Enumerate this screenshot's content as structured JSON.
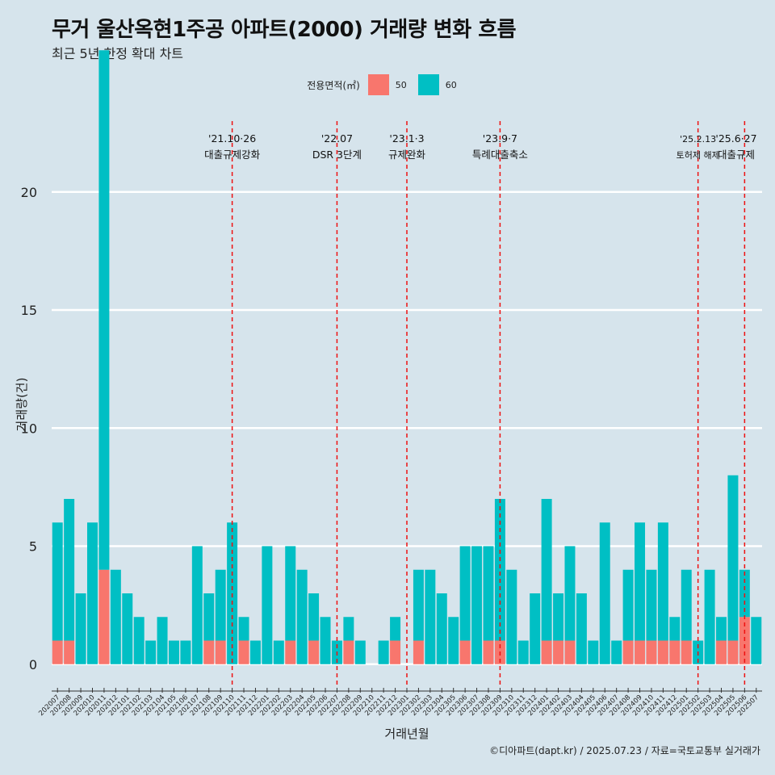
{
  "title": "무거 울산옥현1주공 아파트(2000) 거래량 변화 흐름",
  "subtitle": "최근 5년 한정 확대 차트",
  "caption": "©디아파트(dapt.kr) / 2025.07.23 / 자료=국토교통부 실거래가",
  "colors": {
    "s50": "#f8766d",
    "s60": "#00bfc4",
    "background": "#d6e4ec",
    "grid": "#ffffff",
    "vline": "#ee1111"
  },
  "chart_data": {
    "type": "bar",
    "title": "무거 울산옥현1주공 아파트(2000) 거래량 변화 흐름",
    "subtitle": "최근 5년 한정 확대 차트",
    "xlabel": "거래년월",
    "ylabel": "거래량(건)",
    "ylim": [
      -1,
      23
    ],
    "yticks": [
      0,
      5,
      10,
      15,
      20
    ],
    "grid": true,
    "legend": {
      "title": "전용면적(㎡)",
      "position": "top",
      "entries": [
        "50",
        "60"
      ]
    },
    "categories": [
      "202007",
      "202008",
      "202009",
      "202010",
      "202011",
      "202012",
      "202101",
      "202102",
      "202103",
      "202104",
      "202105",
      "202106",
      "202107",
      "202108",
      "202109",
      "202110",
      "202111",
      "202112",
      "202201",
      "202202",
      "202203",
      "202204",
      "202205",
      "202206",
      "202207",
      "202208",
      "202209",
      "202210",
      "202211",
      "202212",
      "202301",
      "202302",
      "202303",
      "202304",
      "202305",
      "202306",
      "202307",
      "202308",
      "202309",
      "202310",
      "202311",
      "202312",
      "202401",
      "202402",
      "202403",
      "202404",
      "202405",
      "202406",
      "202407",
      "202408",
      "202409",
      "202410",
      "202411",
      "202412",
      "202501",
      "202502",
      "202503",
      "202504",
      "202505",
      "202506",
      "202507"
    ],
    "series": [
      {
        "name": "50",
        "values": [
          1,
          1,
          0,
          0,
          4,
          0,
          0,
          0,
          0,
          0,
          0,
          0,
          0,
          1,
          1,
          0,
          1,
          0,
          0,
          0,
          1,
          0,
          1,
          0,
          0,
          1,
          0,
          0,
          0,
          1,
          0,
          1,
          0,
          0,
          0,
          1,
          0,
          1,
          1,
          0,
          0,
          0,
          1,
          1,
          1,
          0,
          0,
          0,
          0,
          1,
          1,
          1,
          1,
          1,
          1,
          0,
          0,
          1,
          1,
          2,
          0
        ]
      },
      {
        "name": "60",
        "values": [
          5,
          6,
          3,
          6,
          22,
          4,
          3,
          2,
          1,
          2,
          1,
          1,
          5,
          2,
          3,
          6,
          1,
          1,
          5,
          1,
          4,
          4,
          2,
          2,
          1,
          1,
          1,
          0,
          1,
          1,
          0,
          3,
          4,
          3,
          2,
          4,
          5,
          4,
          6,
          4,
          1,
          3,
          6,
          2,
          4,
          3,
          1,
          6,
          1,
          3,
          5,
          3,
          5,
          1,
          3,
          1,
          4,
          1,
          7,
          2,
          2
        ]
      }
    ],
    "annotations": [
      {
        "at": "202110",
        "date": "'21.10·26",
        "label": "대출규제강화"
      },
      {
        "at": "202207",
        "date": "'22.07",
        "label": "DSR 3단계"
      },
      {
        "at": "202301",
        "date": "'23.1·3",
        "label": "규제완화"
      },
      {
        "at": "202309",
        "date": "'23.9·7",
        "label": "특례대출축소"
      },
      {
        "at": "202502",
        "date": "'25.2.13",
        "label": "토허제 해제",
        "small": true
      },
      {
        "at": "202506",
        "date": "'25.6·27",
        "label": "대출규제"
      }
    ]
  }
}
